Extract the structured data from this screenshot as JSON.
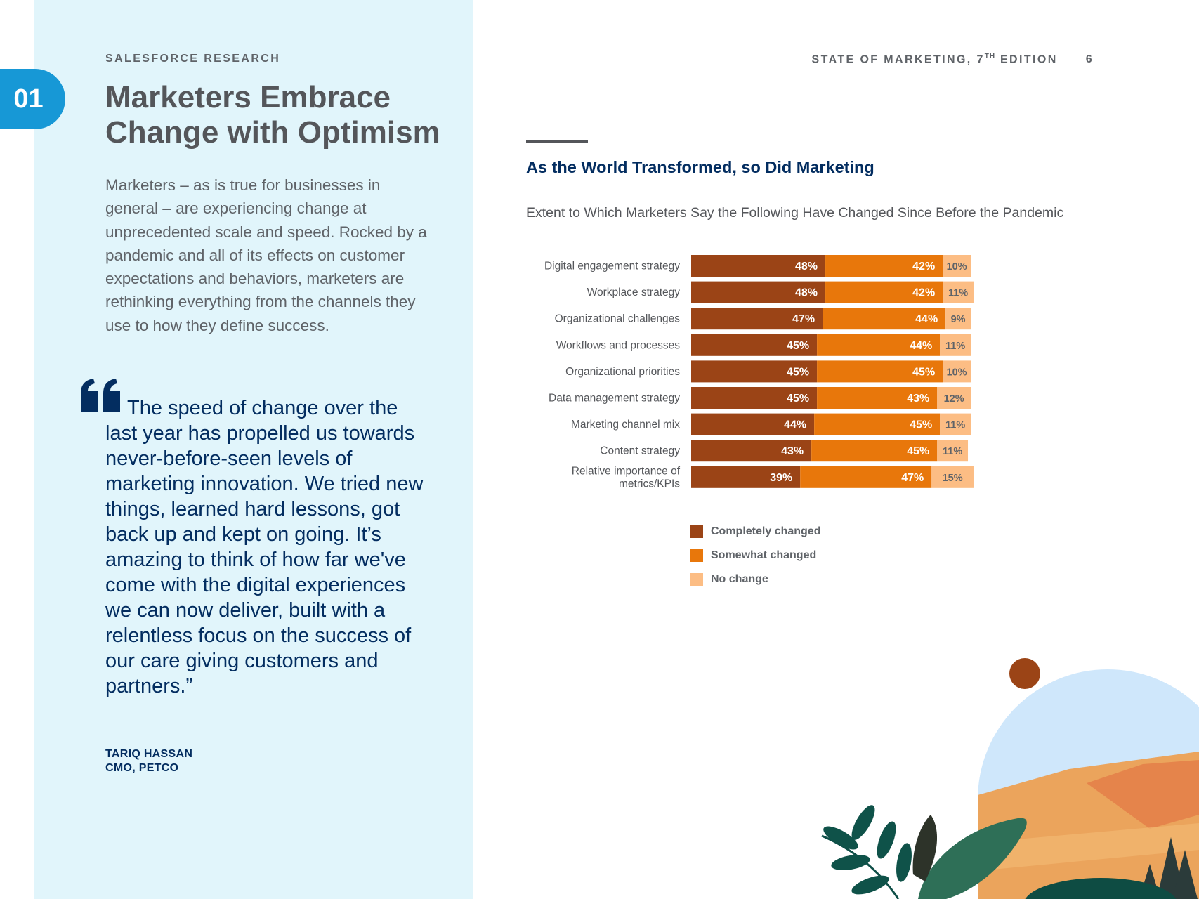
{
  "page": {
    "eyebrow": "SALESFORCE RESEARCH",
    "chapter": "01",
    "title": "Marketers Embrace Change with Optimism",
    "intro": "Marketers – as is true for businesses in general – are experiencing change at unprecedented scale and speed. Rocked by a pandemic and all of its effects on customer expectations and behaviors, marketers are rethinking everything from the channels they use to how they define success.",
    "quote": "The speed of change over the last year has propelled us towards never-before-seen levels of marketing innovation. We tried new things, learned hard lessons, got back up and kept on going. It’s amazing to think of how far we've come with the digital experiences we can now deliver, built with a relentless focus on the success of our care giving customers and partners.”",
    "attribution_name": "TARIQ HASSAN",
    "attribution_role": "CMO, PETCO",
    "report_title": "STATE OF MARKETING, 7",
    "report_sup": "TH",
    "report_edition": " EDITION",
    "page_number": "6"
  },
  "colors": {
    "panel": "#e1f5fb",
    "accent": "#1798d6",
    "navy": "#032d60",
    "completely": "#9b4416",
    "somewhat": "#e8770b",
    "none": "#fcbd84"
  },
  "chart_data": {
    "type": "bar",
    "orientation": "horizontal",
    "stacked": true,
    "title": "As the World Transformed, so Did Marketing",
    "subtitle": "Extent to Which Marketers Say the Following Have Changed Since Before the Pandemic",
    "categories": [
      [
        "Digital engagement strategy"
      ],
      [
        "Workplace strategy"
      ],
      [
        "Organizational challenges"
      ],
      [
        "Workflows and processes"
      ],
      [
        "Organizational priorities"
      ],
      [
        "Data management strategy"
      ],
      [
        "Marketing channel mix"
      ],
      [
        "Content strategy"
      ],
      [
        "Relative importance of",
        "metrics/KPIs"
      ]
    ],
    "series": [
      {
        "name": "Completely changed",
        "color": "#9b4416",
        "values": [
          48,
          48,
          47,
          45,
          45,
          45,
          44,
          43,
          39
        ]
      },
      {
        "name": "Somewhat changed",
        "color": "#e8770b",
        "values": [
          42,
          42,
          44,
          44,
          45,
          43,
          45,
          45,
          47
        ]
      },
      {
        "name": "No change",
        "color": "#fcbd84",
        "values": [
          10,
          11,
          9,
          11,
          10,
          12,
          11,
          11,
          15
        ]
      }
    ],
    "value_suffix": "%",
    "legend_position": "bottom-left",
    "grid": false
  }
}
